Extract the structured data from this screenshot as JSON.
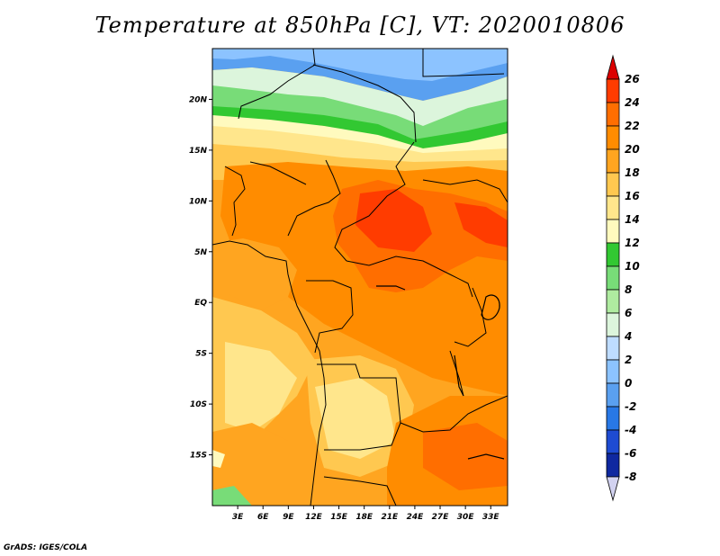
{
  "title": "Temperature at 850hPa [C], VT: 2020010806",
  "footer": "GrADS: IGES/COLA",
  "chart_data": {
    "type": "heatmap",
    "title": "Temperature at 850hPa [C], VT: 2020010806",
    "variable_units": "C",
    "lon_range": [
      0,
      35
    ],
    "lat_range": [
      -20,
      25
    ],
    "x_ticks": [
      {
        "lon": 3,
        "label": "3E"
      },
      {
        "lon": 6,
        "label": "6E"
      },
      {
        "lon": 9,
        "label": "9E"
      },
      {
        "lon": 12,
        "label": "12E"
      },
      {
        "lon": 15,
        "label": "15E"
      },
      {
        "lon": 18,
        "label": "18E"
      },
      {
        "lon": 21,
        "label": "21E"
      },
      {
        "lon": 24,
        "label": "24E"
      },
      {
        "lon": 27,
        "label": "27E"
      },
      {
        "lon": 30,
        "label": "30E"
      },
      {
        "lon": 33,
        "label": "33E"
      }
    ],
    "y_ticks": [
      {
        "lat": 20,
        "label": "20N"
      },
      {
        "lat": 15,
        "label": "15N"
      },
      {
        "lat": 10,
        "label": "10N"
      },
      {
        "lat": 5,
        "label": "5N"
      },
      {
        "lat": 0,
        "label": "EQ"
      },
      {
        "lat": -5,
        "label": "5S"
      },
      {
        "lat": -10,
        "label": "10S"
      },
      {
        "lat": -15,
        "label": "15S"
      }
    ],
    "colorbar": {
      "levels": [
        26,
        24,
        22,
        20,
        18,
        16,
        14,
        12,
        10,
        8,
        6,
        4,
        2,
        0,
        -2,
        -4,
        -6,
        -8
      ],
      "colors": [
        "#ff1400",
        "#ff3c00",
        "#ff6e00",
        "#ff8c00",
        "#ffa520",
        "#ffc850",
        "#ffe68c",
        "#fffabe",
        "#32c832",
        "#78dc78",
        "#afeba0",
        "#dcf5dc",
        "#bedcff",
        "#8cc3ff",
        "#5aa0f0",
        "#2878e6",
        "#1e4bd2",
        "#0f28a0",
        "#050050"
      ],
      "top_arrow_color": "#dc0000",
      "bottom_arrow_color": "#d2d2f0"
    }
  }
}
